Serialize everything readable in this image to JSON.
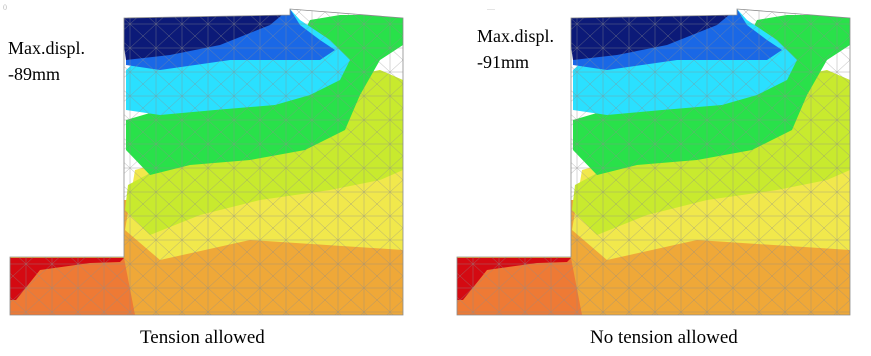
{
  "panels": [
    {
      "max_displ_label": "Max.displ.",
      "max_displ_value": "-89mm",
      "caption": "Tension allowed",
      "corner_mark": "0"
    },
    {
      "max_displ_label": "Max.displ.",
      "max_displ_value": "-91mm",
      "caption": "No tension allowed",
      "corner_mark": "...."
    }
  ],
  "colors": {
    "band_darkblue": "#0c1a78",
    "band_blue": "#1a68e6",
    "band_cyan": "#2ae0ff",
    "band_green": "#29e14a",
    "band_yellowgreen": "#c8ea2e",
    "band_yellow": "#f1e84c",
    "band_orange": "#efa838",
    "band_darkorange": "#ee7a35",
    "band_red": "#d40a12",
    "mesh": "#8c8c8c"
  }
}
